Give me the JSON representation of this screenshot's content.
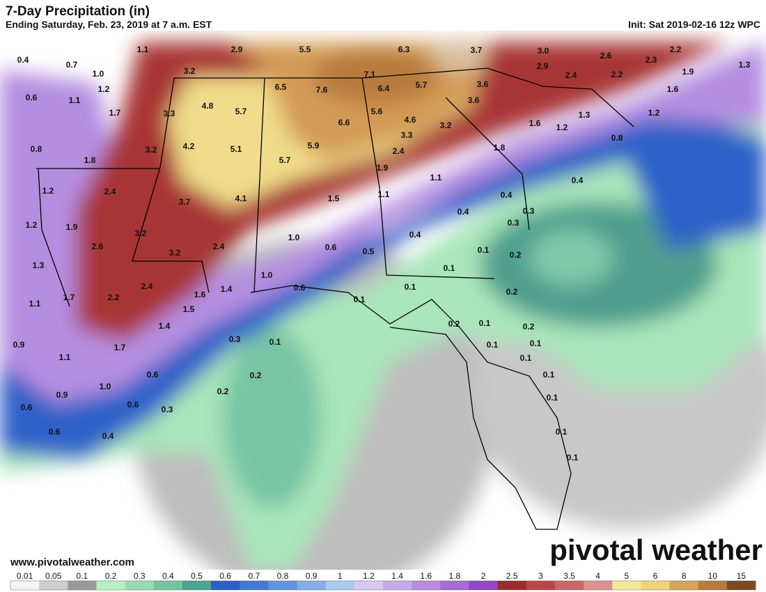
{
  "header": {
    "title": "7-Day Precipitation (in)",
    "subtitle": "Ending Saturday, Feb. 23, 2019 at 7 a.m. EST",
    "init": "Init: Sat 2019-02-16 12z WPC"
  },
  "map": {
    "labels": [
      0.4,
      0.7,
      1.1,
      2.9,
      5.5,
      6.3,
      3.7,
      {
        "value": 3.0,
        "label": "3.0"
      },
      2.6,
      2.2,
      2.3,
      {
        "value": 1.0,
        "label": "1.0"
      },
      1.2,
      0.6,
      1.1,
      1.7,
      3.3,
      3.2,
      4.8,
      5.7,
      6.5,
      7.6,
      7.1,
      6.4,
      5.7,
      2.9,
      2.4,
      2.2,
      1.9,
      1.3,
      3.6,
      3.6,
      1.6,
      5.6,
      6.6,
      4.6,
      3.2,
      1.3,
      1.2,
      0.8,
      1.8,
      3.2,
      4.2,
      5.1,
      5.9,
      3.3,
      1.6,
      1.2,
      0.8,
      5.7,
      2.4,
      1.8,
      1.2,
      2.4,
      3.7,
      4.1,
      1.9,
      1.1,
      0.4,
      1.5,
      1.1,
      0.4,
      1.2,
      1.9,
      0.4,
      0.3,
      0.3,
      3.2,
      0.4,
      2.6,
      3.2,
      2.4,
      {
        "value": 1.0,
        "label": "1.0"
      },
      0.6,
      0.5,
      0.1,
      0.2,
      1.3,
      0.1,
      {
        "value": 1.0,
        "label": "1.0"
      },
      0.6,
      2.4,
      1.4,
      0.1,
      0.2,
      1.1,
      1.7,
      2.2,
      1.6,
      0.1,
      1.5,
      1.4,
      0.2,
      0.1,
      0.2,
      0.9,
      1.7,
      0.3,
      0.1,
      0.1,
      0.1,
      1.1,
      0.1,
      0.6,
      0.2,
      0.1,
      {
        "value": 1.0,
        "label": "1.0"
      },
      0.9,
      0.2,
      0.1,
      0.6,
      0.6,
      0.3,
      0.6,
      0.4,
      0.1,
      0.1
    ]
  },
  "legend": {
    "ticks": [
      0.01,
      0.05,
      0.1,
      0.2,
      0.3,
      0.4,
      0.5,
      0.6,
      0.7,
      0.8,
      0.9,
      1,
      1.2,
      1.4,
      1.6,
      1.8,
      2,
      2.5,
      3,
      3.5,
      4,
      5,
      6,
      8,
      10,
      15
    ],
    "colors": [
      "#f4f4f4",
      "#cfcfcf",
      "#9a9a9a",
      "#b6efc2",
      "#96dcae",
      "#74c4a0",
      "#4aa592",
      "#2a5fc8",
      "#4279d6",
      "#6094de",
      "#83aee6",
      "#a9cbef",
      "#d9c9f0",
      "#c9aae8",
      "#b98bdf",
      "#a76cd5",
      "#9446c8",
      "#9e2c2c",
      "#bc4646",
      "#cc6767",
      "#dd9090",
      "#f5e79a",
      "#f2d37a",
      "#d8a35a",
      "#b87a3c",
      "#7a4a22"
    ]
  },
  "footer": {
    "website": "www.pivotalweather.com",
    "brand": "pivotal weather"
  }
}
